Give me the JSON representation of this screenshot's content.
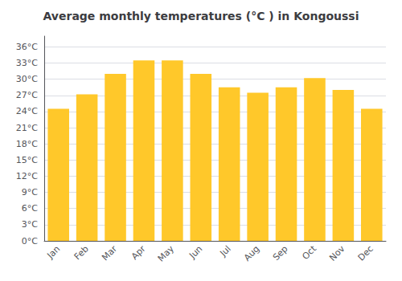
{
  "chart_data": {
    "type": "bar",
    "title": "Average monthly temperatures (°C ) in Kongoussi",
    "categories": [
      "Jan",
      "Feb",
      "Mar",
      "Apr",
      "May",
      "Jun",
      "Jul",
      "Aug",
      "Sep",
      "Oct",
      "Nov",
      "Dec"
    ],
    "values": [
      24.5,
      27.2,
      31.0,
      33.5,
      33.5,
      31.0,
      28.5,
      27.5,
      28.5,
      30.2,
      28.0,
      24.5
    ],
    "color": "#FFC82A",
    "ylim": [
      0,
      38
    ],
    "yticks": [
      {
        "value": 0,
        "label": "0°C"
      },
      {
        "value": 3,
        "label": "3°C"
      },
      {
        "value": 6,
        "label": "6°C"
      },
      {
        "value": 9,
        "label": "9°C"
      },
      {
        "value": 12,
        "label": "12°C"
      },
      {
        "value": 15,
        "label": "15°C"
      },
      {
        "value": 18,
        "label": "18°C"
      },
      {
        "value": 21,
        "label": "21°C"
      },
      {
        "value": 24,
        "label": "24°C"
      },
      {
        "value": 27,
        "label": "27°C"
      },
      {
        "value": 30,
        "label": "30°C"
      },
      {
        "value": 33,
        "label": "33°C"
      },
      {
        "value": 36,
        "label": "36°C"
      }
    ],
    "grid": true
  }
}
